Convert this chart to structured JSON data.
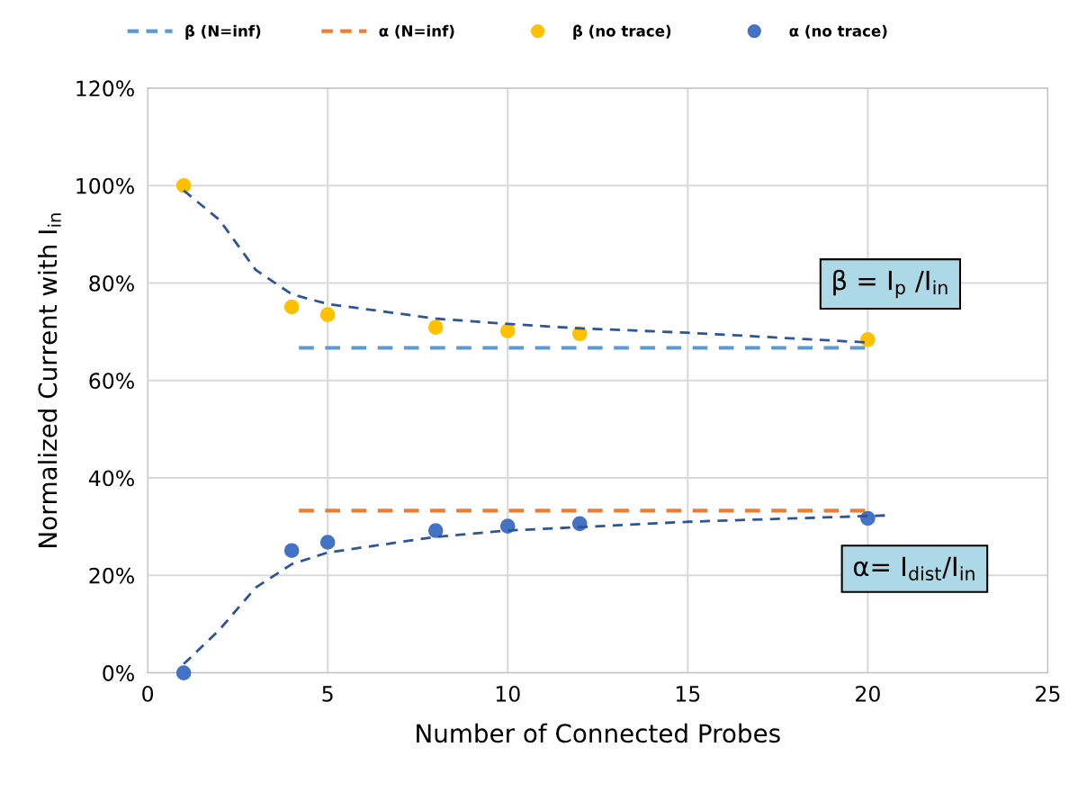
{
  "chart_data": {
    "type": "scatter",
    "xlabel": "Number of Connected Probes",
    "ylabel": "Normalized Current with I$_{in}$",
    "xlim": [
      0,
      25
    ],
    "xticks": [
      0,
      5,
      10,
      15,
      20,
      25
    ],
    "ylim": [
      0,
      120
    ],
    "yticks": [
      {
        "value": 0,
        "label": "0%"
      },
      {
        "value": 20,
        "label": "20%"
      },
      {
        "value": 40,
        "label": "40%"
      },
      {
        "value": 60,
        "label": "60%"
      },
      {
        "value": 80,
        "label": "80%"
      },
      {
        "value": 100,
        "label": "100%"
      },
      {
        "value": 120,
        "label": "120%"
      }
    ],
    "grid": true,
    "legend": "top",
    "annotations": [
      "β = I$_{p}$ /I$_{in}$",
      "α= I$_{dist}$/I$_{in}$"
    ],
    "series": [
      {
        "name": "β (N=inf)",
        "type": "line",
        "line_style": "dashed",
        "marker": "none",
        "color": "#5b9bd5",
        "x": [
          4.2,
          20
        ],
        "values": [
          66.7,
          66.7
        ]
      },
      {
        "name": "α (N=inf)",
        "type": "line",
        "line_style": "dashed",
        "marker": "none",
        "color": "#ed7d31",
        "x": [
          4.2,
          20
        ],
        "values": [
          33.3,
          33.3
        ]
      },
      {
        "name": "β (no trace)",
        "marker": "circle",
        "color": "#ffc000",
        "x": [
          1,
          4,
          5,
          8,
          10,
          12,
          20
        ],
        "values": [
          100,
          75.1,
          73.5,
          70.9,
          70.2,
          69.6,
          68.4
        ]
      },
      {
        "name": "α (no trace)",
        "marker": "circle",
        "color": "#4472c4",
        "x": [
          1,
          4,
          5,
          8,
          10,
          12,
          20
        ],
        "values": [
          0,
          25.1,
          26.8,
          29.2,
          30.1,
          30.6,
          31.7
        ]
      },
      {
        "type": "line",
        "line_style": "dashed",
        "marker": "none",
        "color": "#2f5597",
        "x": [
          1,
          2,
          3,
          4,
          5,
          8,
          10,
          12,
          15,
          20
        ],
        "values": [
          99,
          92.9,
          82.7,
          77.7,
          75.7,
          72.7,
          71.6,
          70.7,
          69.8,
          67.8
        ]
      },
      {
        "type": "line",
        "line_style": "dashed",
        "marker": "none",
        "color": "#2f5597",
        "x": [
          1,
          2,
          3,
          4,
          5,
          8,
          10,
          12,
          15,
          20.5
        ],
        "values": [
          1.8,
          8.9,
          17.5,
          22.3,
          24.7,
          27.9,
          29.2,
          29.9,
          31,
          32.3
        ]
      }
    ]
  }
}
